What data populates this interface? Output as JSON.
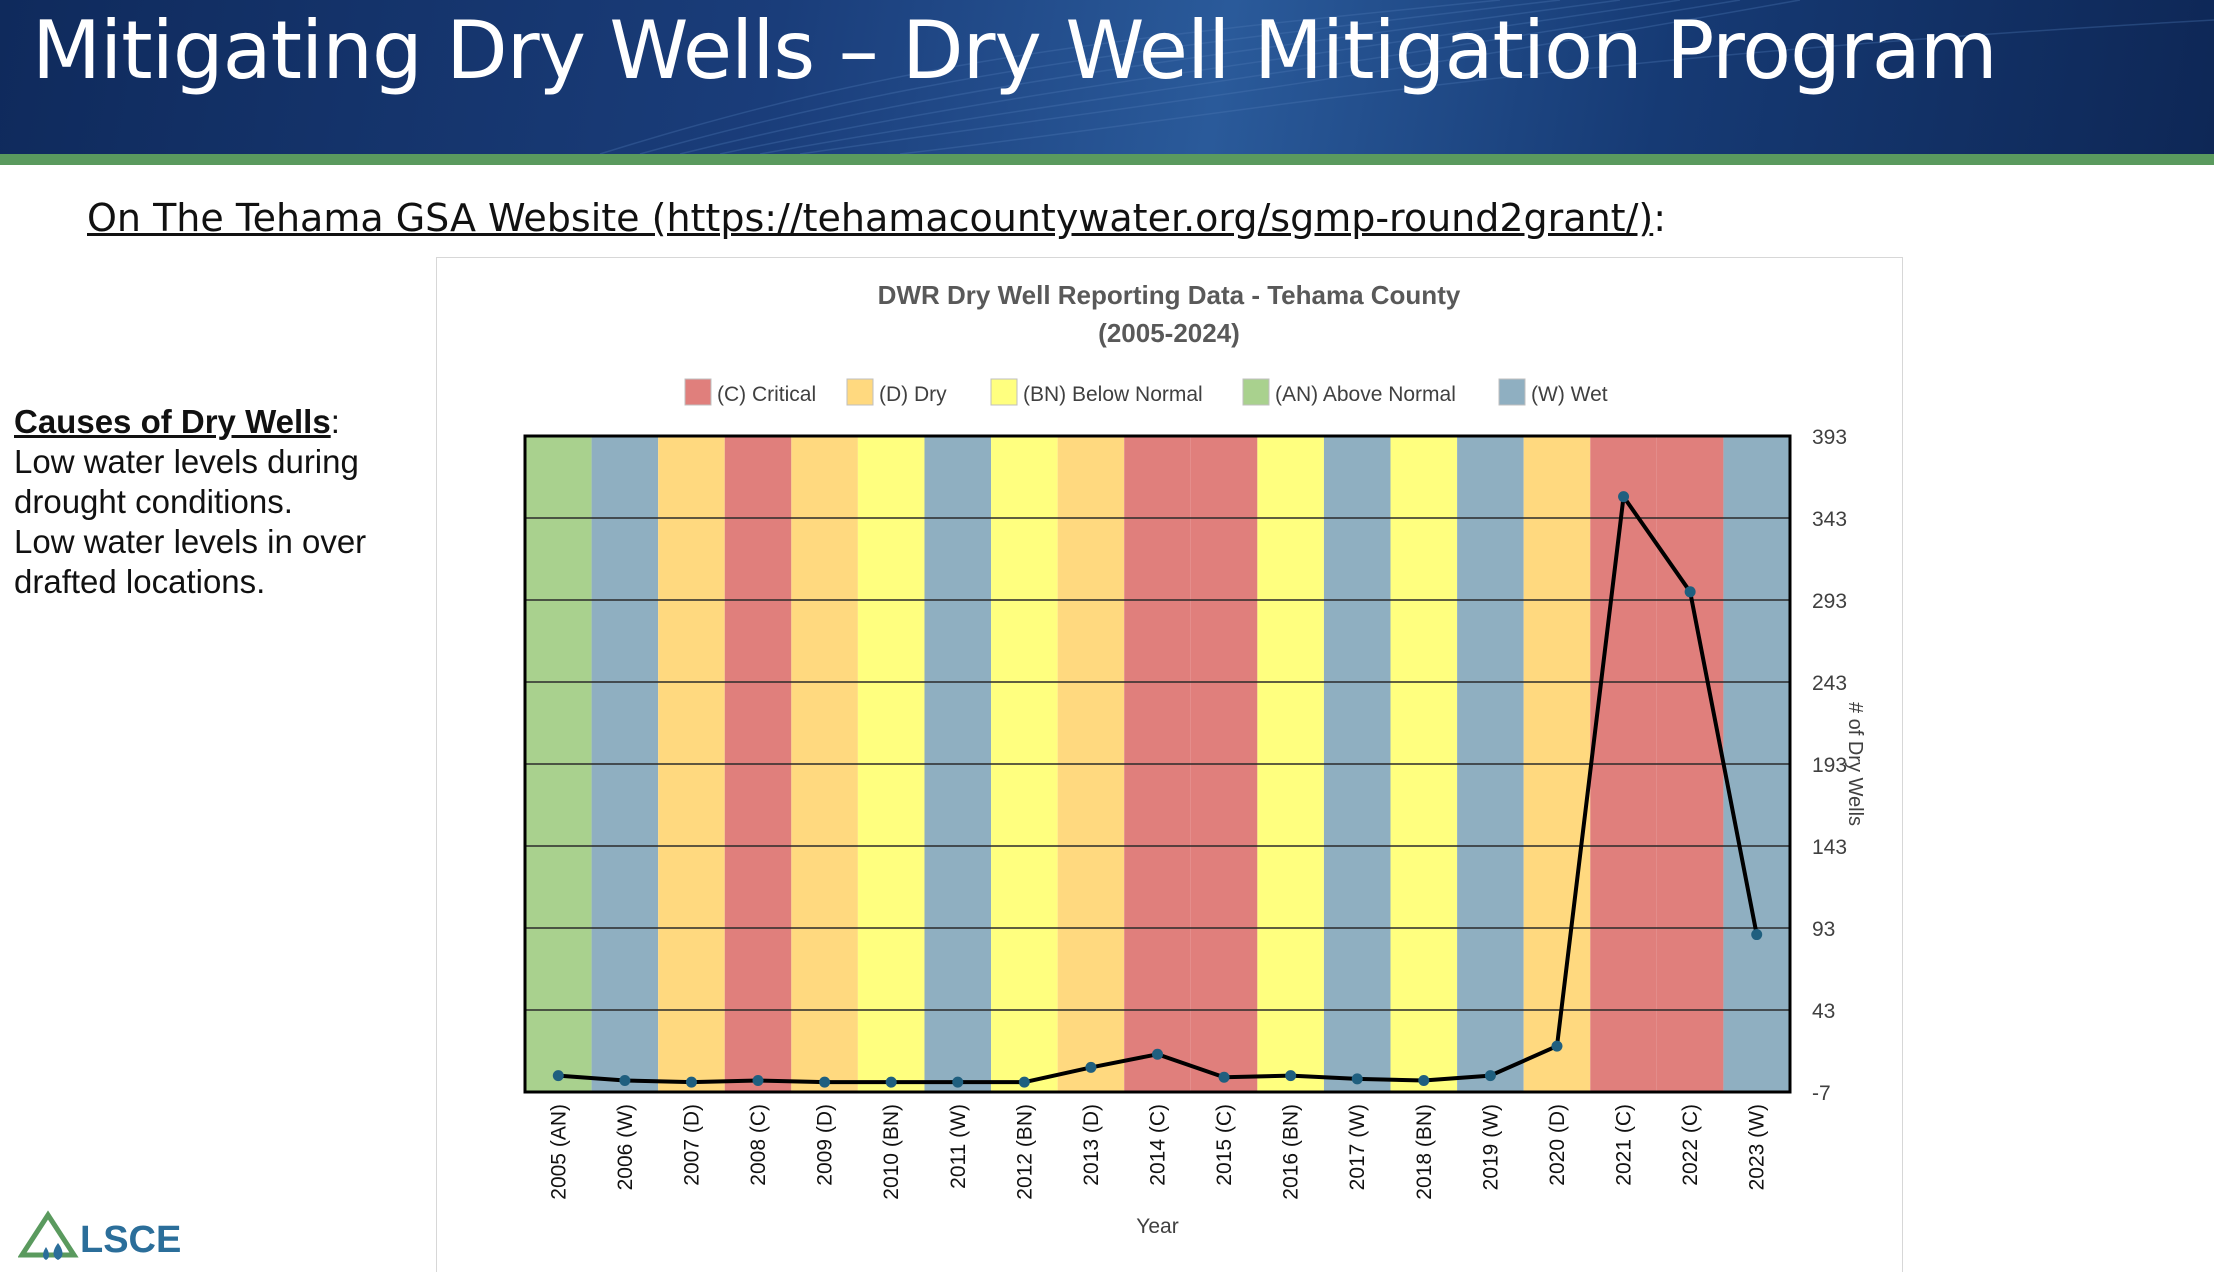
{
  "slide": {
    "title": "Mitigating Dry Wells – Dry Well Mitigation Program",
    "subtitle_prefix": "On The Tehama GSA Website (https://tehamacountywater.org/sgmp-round2grant/)",
    "subtitle_suffix": ":",
    "causes_heading": "Causes of Dry Wells",
    "causes_colon": ":",
    "causes_lines": [
      "Low water levels during drought conditions.",
      "Low water levels in over drafted locations."
    ],
    "logo_text": "LSCE"
  },
  "colors": {
    "banner": "#163a74",
    "stripe": "#5a9a5e",
    "critical": "#e07f7c",
    "dry": "#ffd97f",
    "below_normal": "#ffff7f",
    "above_normal": "#a9d18e",
    "wet": "#8fafc1",
    "line": "#000000",
    "marker": "#1f5f7f"
  },
  "chart_data": {
    "type": "line",
    "title": "DWR Dry Well Reporting Data - Tehama County",
    "title_line2": "(2005-2024)",
    "xlabel": "Year",
    "ylabel": "# of Dry Wells",
    "ylim": [
      -7,
      393
    ],
    "yticks": [
      "393",
      "343",
      "293",
      "243",
      "193",
      "143",
      "93",
      "43",
      "-7"
    ],
    "y_axis_side": "right",
    "legend_position": "top",
    "legend": [
      {
        "code": "C",
        "label": "(C) Critical"
      },
      {
        "code": "D",
        "label": "(D) Dry"
      },
      {
        "code": "BN",
        "label": "(BN) Below Normal"
      },
      {
        "code": "AN",
        "label": "(AN) Above Normal"
      },
      {
        "code": "W",
        "label": "(W) Wet"
      }
    ],
    "categories": [
      "2005 (AN)",
      "2006 (W)",
      "2007 (D)",
      "2008 (C)",
      "2009 (D)",
      "2010 (BN)",
      "2011 (W)",
      "2012 (BN)",
      "2013 (D)",
      "2014 (C)",
      "2015 (C)",
      "2016 (BN)",
      "2017 (W)",
      "2018 (BN)",
      "2019 (W)",
      "2020 (D)",
      "2021 (C)",
      "2022 (C)",
      "2023 (W)"
    ],
    "year_types": [
      "AN",
      "W",
      "D",
      "C",
      "D",
      "BN",
      "W",
      "BN",
      "D",
      "C",
      "C",
      "BN",
      "W",
      "BN",
      "W",
      "D",
      "C",
      "C",
      "W"
    ],
    "series": [
      {
        "values": [
          3,
          0,
          -1,
          0,
          -1,
          -1,
          -1,
          -1,
          8,
          16,
          2,
          3,
          1,
          0,
          3,
          21,
          356,
          298,
          89
        ]
      }
    ]
  }
}
